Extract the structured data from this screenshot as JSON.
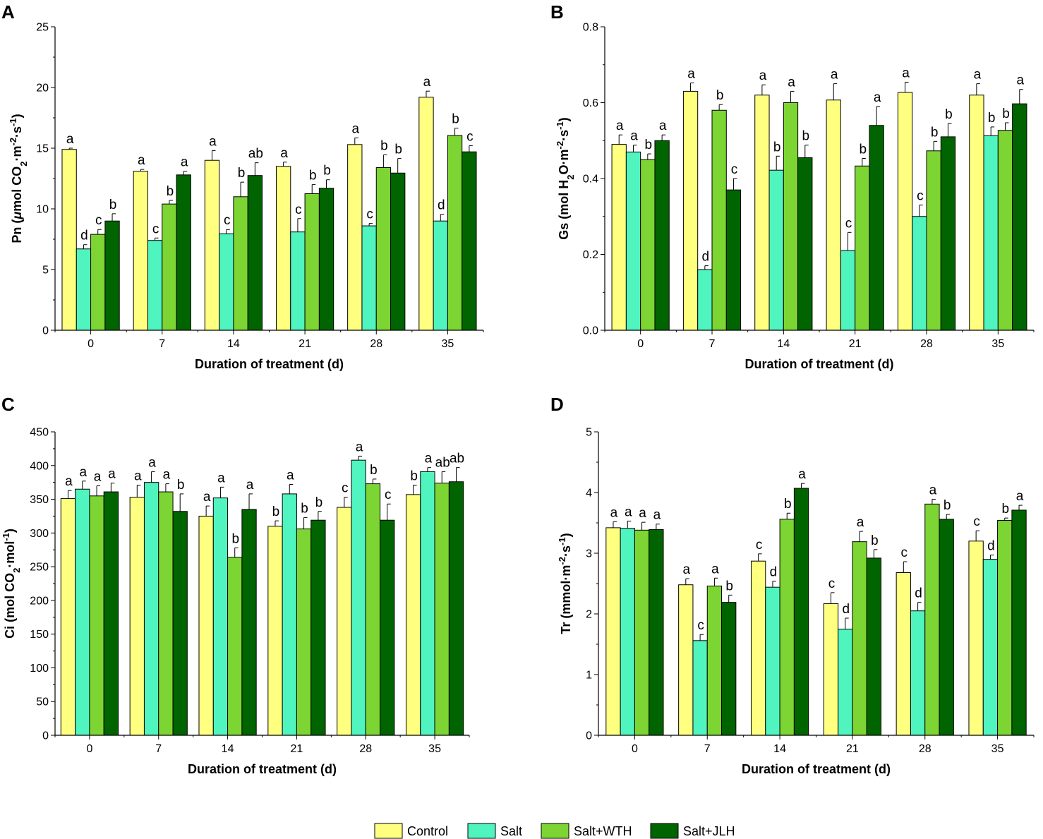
{
  "legend": [
    {
      "name": "Control",
      "color": "#FFFF80"
    },
    {
      "name": "Salt",
      "color": "#50F4BE"
    },
    {
      "name": "Salt+WTH",
      "color": "#7CD533"
    },
    {
      "name": "Salt+JLH",
      "color": "#006400"
    }
  ],
  "chart_data": [
    {
      "panel": "A",
      "type": "bar",
      "title": "",
      "xlabel": "Duration of treatment (d)",
      "ylabel": "Pn (μmol CO2·m-2·s-1)",
      "ylabel_parts": [
        "Pn (",
        "μ",
        "mol CO",
        "2",
        "·m",
        "-2",
        "·s",
        "-1",
        ")"
      ],
      "ylim": [
        0,
        25
      ],
      "yticks": [
        0,
        5,
        10,
        15,
        20,
        25
      ],
      "categories": [
        "0",
        "7",
        "14",
        "21",
        "28",
        "35"
      ],
      "series": [
        {
          "name": "Control",
          "values": [
            14.9,
            13.1,
            14.0,
            13.5,
            15.3,
            19.2
          ],
          "errors": [
            0.1,
            0.15,
            0.8,
            0.35,
            0.55,
            0.5
          ],
          "letters": [
            "a",
            "a",
            "a",
            "a",
            "a",
            "a"
          ]
        },
        {
          "name": "Salt",
          "values": [
            6.7,
            7.4,
            7.95,
            8.1,
            8.6,
            9.0
          ],
          "errors": [
            0.35,
            0.2,
            0.35,
            1.1,
            0.2,
            0.55
          ],
          "letters": [
            "d",
            "c",
            "c",
            "c",
            "c",
            "d"
          ]
        },
        {
          "name": "Salt+WTH",
          "values": [
            7.9,
            10.4,
            11.0,
            11.25,
            13.4,
            16.05
          ],
          "errors": [
            0.4,
            0.3,
            1.2,
            0.75,
            1.05,
            0.6
          ],
          "letters": [
            "c",
            "b",
            "b",
            "b",
            "b",
            "b"
          ]
        },
        {
          "name": "Salt+JLH",
          "values": [
            9.0,
            12.8,
            12.75,
            11.7,
            12.95,
            14.7
          ],
          "errors": [
            0.6,
            0.3,
            1.05,
            0.7,
            1.2,
            0.5
          ],
          "letters": [
            "b",
            "a",
            "ab",
            "b",
            "b",
            "c"
          ]
        }
      ]
    },
    {
      "panel": "B",
      "type": "bar",
      "title": "",
      "xlabel": "Duration of treatment (d)",
      "ylabel": "Gs (mol H2O·m-2·s-1)",
      "ylabel_parts": [
        "Gs (mol H",
        "2",
        "O·m",
        "-2",
        "·s",
        "-1",
        ")"
      ],
      "ylim": [
        0,
        0.8
      ],
      "yticks": [
        0.0,
        0.2,
        0.4,
        0.6,
        0.8
      ],
      "ytick_labels": [
        "0.0",
        "0.2",
        "0.4",
        "0.6",
        "0.8"
      ],
      "categories": [
        "0",
        "7",
        "14",
        "21",
        "28",
        "35"
      ],
      "series": [
        {
          "name": "Control",
          "values": [
            0.49,
            0.63,
            0.62,
            0.607,
            0.627,
            0.62
          ],
          "errors": [
            0.025,
            0.022,
            0.027,
            0.043,
            0.027,
            0.03
          ],
          "letters": [
            "a",
            "a",
            "a",
            "a",
            "a",
            "a"
          ]
        },
        {
          "name": "Salt",
          "values": [
            0.47,
            0.16,
            0.422,
            0.21,
            0.3,
            0.513
          ],
          "errors": [
            0.018,
            0.01,
            0.037,
            0.048,
            0.03,
            0.023
          ],
          "letters": [
            "a",
            "d",
            "b",
            "c",
            "c",
            "b"
          ]
        },
        {
          "name": "Salt+WTH",
          "values": [
            0.45,
            0.58,
            0.6,
            0.433,
            0.473,
            0.527
          ],
          "errors": [
            0.015,
            0.015,
            0.03,
            0.02,
            0.025,
            0.02
          ],
          "letters": [
            "b",
            "b",
            "a",
            "b",
            "b",
            "b"
          ]
        },
        {
          "name": "Salt+JLH",
          "values": [
            0.5,
            0.37,
            0.455,
            0.54,
            0.51,
            0.597
          ],
          "errors": [
            0.015,
            0.03,
            0.033,
            0.05,
            0.035,
            0.038
          ],
          "letters": [
            "a",
            "c",
            "b",
            "a",
            "b",
            "a"
          ]
        }
      ]
    },
    {
      "panel": "C",
      "type": "bar",
      "title": "",
      "xlabel": "Duration of treatment (d)",
      "ylabel": "Ci (mol CO2·mol-1)",
      "ylabel_parts": [
        "Ci (mol CO",
        "2",
        "·mol",
        "-1",
        ")"
      ],
      "ylim": [
        0,
        450
      ],
      "yticks": [
        0,
        50,
        100,
        150,
        200,
        250,
        300,
        350,
        400,
        450
      ],
      "categories": [
        "0",
        "7",
        "14",
        "21",
        "28",
        "35"
      ],
      "series": [
        {
          "name": "Control",
          "values": [
            351,
            353,
            325,
            310,
            338,
            357
          ],
          "errors": [
            12,
            18,
            15,
            8,
            15,
            14
          ],
          "letters": [
            "a",
            "a",
            "a",
            "b",
            "c",
            "b"
          ]
        },
        {
          "name": "Salt",
          "values": [
            365,
            375,
            352,
            358,
            408,
            391
          ],
          "errors": [
            12,
            16,
            16,
            14,
            6,
            6
          ],
          "letters": [
            "a",
            "a",
            "a",
            "a",
            "a",
            "a"
          ]
        },
        {
          "name": "Salt+WTH",
          "values": [
            355,
            361,
            264,
            306,
            373,
            374
          ],
          "errors": [
            15,
            12,
            14,
            17,
            7,
            17
          ],
          "letters": [
            "a",
            "a",
            "b",
            "b",
            "b",
            "ab"
          ]
        },
        {
          "name": "Salt+JLH",
          "values": [
            361,
            332,
            335,
            319,
            319,
            376
          ],
          "errors": [
            13,
            26,
            23,
            13,
            24,
            21
          ],
          "letters": [
            "a",
            "b",
            "a",
            "b",
            "c",
            "ab"
          ]
        }
      ]
    },
    {
      "panel": "D",
      "type": "bar",
      "title": "",
      "xlabel": "Duration of treatment (d)",
      "ylabel": "Tr (mmol·m-2·s-1)",
      "ylabel_parts": [
        "Tr (mmol·m",
        "-2",
        "·s",
        "-1",
        ")"
      ],
      "ylim": [
        0,
        5
      ],
      "yticks": [
        0,
        1,
        2,
        3,
        4,
        5
      ],
      "categories": [
        "0",
        "7",
        "14",
        "21",
        "28",
        "35"
      ],
      "series": [
        {
          "name": "Control",
          "values": [
            3.42,
            2.48,
            2.87,
            2.17,
            2.68,
            3.2
          ],
          "errors": [
            0.1,
            0.1,
            0.12,
            0.18,
            0.18,
            0.17
          ],
          "letters": [
            "a",
            "a",
            "c",
            "c",
            "c",
            "c"
          ]
        },
        {
          "name": "Salt",
          "values": [
            3.41,
            1.56,
            2.44,
            1.75,
            2.05,
            2.9
          ],
          "errors": [
            0.12,
            0.1,
            0.1,
            0.18,
            0.14,
            0.07
          ],
          "letters": [
            "a",
            "c",
            "d",
            "d",
            "d",
            "d"
          ]
        },
        {
          "name": "Salt+WTH",
          "values": [
            3.38,
            2.46,
            3.56,
            3.19,
            3.81,
            3.54
          ],
          "errors": [
            0.13,
            0.13,
            0.1,
            0.17,
            0.08,
            0.04
          ],
          "letters": [
            "a",
            "a",
            "b",
            "a",
            "a",
            "b"
          ]
        },
        {
          "name": "Salt+JLH",
          "values": [
            3.39,
            2.19,
            4.07,
            2.92,
            3.56,
            3.71
          ],
          "errors": [
            0.09,
            0.12,
            0.08,
            0.14,
            0.08,
            0.08
          ],
          "letters": [
            "a",
            "b",
            "a",
            "b",
            "b",
            "a"
          ]
        }
      ]
    }
  ]
}
